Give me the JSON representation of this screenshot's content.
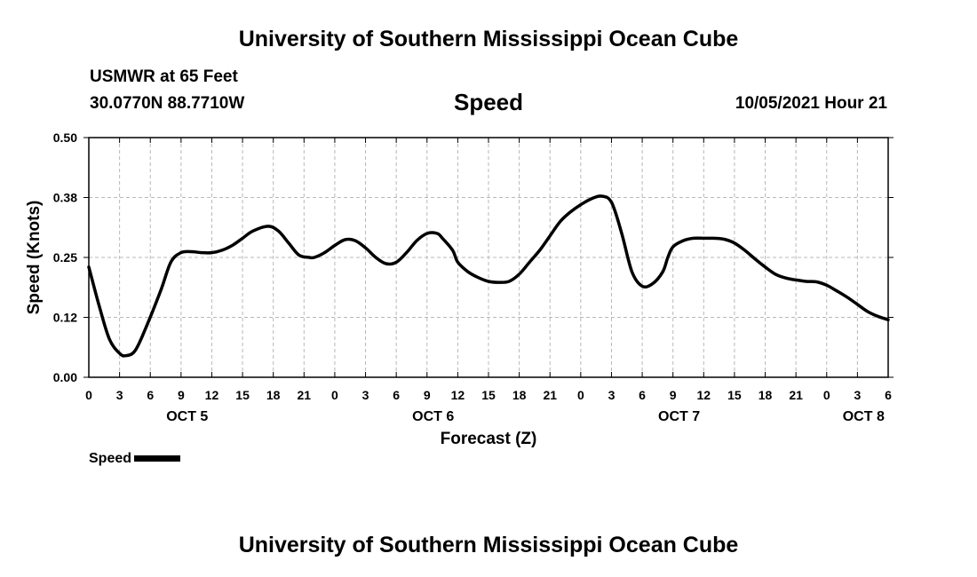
{
  "header": {
    "title": "University of Southern Mississippi Ocean Cube",
    "station": "USMWR at 65 Feet",
    "coords": "30.0770N  88.7710W",
    "timestamp": "10/05/2021 Hour 21"
  },
  "footer": {
    "title": "University of Southern Mississippi Ocean Cube"
  },
  "legend": {
    "label": "Speed"
  },
  "chart_data": {
    "type": "line",
    "title": "Speed",
    "xlabel": "Forecast (Z)",
    "ylabel": "Speed (Knots)",
    "xlim": [
      0,
      78
    ],
    "ylim": [
      0.0,
      0.5
    ],
    "ytick_values": [
      0.0,
      0.125,
      0.25,
      0.375,
      0.5
    ],
    "ytick_labels": [
      "0.00",
      "0.12",
      "0.25",
      "0.38",
      "0.50"
    ],
    "xtick_values": [
      0,
      3,
      6,
      9,
      12,
      15,
      18,
      21,
      24,
      27,
      30,
      33,
      36,
      39,
      42,
      45,
      48,
      51,
      54,
      57,
      60,
      63,
      66,
      69,
      72,
      75,
      78
    ],
    "xtick_labels": [
      "0",
      "3",
      "6",
      "9",
      "12",
      "15",
      "18",
      "21",
      "0",
      "3",
      "6",
      "9",
      "12",
      "15",
      "18",
      "21",
      "0",
      "3",
      "6",
      "9",
      "12",
      "15",
      "18",
      "21",
      "0",
      "3",
      "6"
    ],
    "day_labels": [
      {
        "x": 9.6,
        "label": "OCT 5"
      },
      {
        "x": 33.6,
        "label": "OCT 6"
      },
      {
        "x": 57.6,
        "label": "OCT 7"
      },
      {
        "x": 75.6,
        "label": "OCT 8"
      }
    ],
    "grid": true,
    "series": [
      {
        "name": "Speed",
        "color": "#000000",
        "x": [
          0,
          1,
          2,
          3,
          3.6,
          4.5,
          5.5,
          7,
          8,
          9,
          10,
          11,
          12,
          13,
          14,
          15,
          16,
          17.5,
          18.5,
          19.5,
          20.5,
          21.5,
          22,
          23,
          24,
          25,
          26,
          27,
          28,
          29,
          30,
          31,
          32,
          33,
          34,
          34.5,
          35.5,
          36,
          37,
          38,
          39,
          40,
          41,
          42,
          43,
          44,
          45,
          46,
          47,
          48,
          49,
          50,
          51,
          52,
          53,
          54,
          55,
          56,
          56.5,
          57,
          58,
          59,
          60,
          61,
          62,
          63,
          64,
          65,
          66,
          67,
          68,
          69,
          70,
          71,
          72,
          73,
          74,
          75,
          76,
          77,
          78
        ],
        "y": [
          0.23,
          0.15,
          0.08,
          0.05,
          0.045,
          0.055,
          0.1,
          0.18,
          0.24,
          0.26,
          0.262,
          0.26,
          0.26,
          0.265,
          0.275,
          0.29,
          0.305,
          0.315,
          0.305,
          0.28,
          0.255,
          0.25,
          0.25,
          0.26,
          0.275,
          0.287,
          0.285,
          0.27,
          0.25,
          0.237,
          0.24,
          0.26,
          0.285,
          0.3,
          0.3,
          0.29,
          0.265,
          0.24,
          0.22,
          0.208,
          0.2,
          0.198,
          0.2,
          0.215,
          0.24,
          0.265,
          0.295,
          0.325,
          0.345,
          0.36,
          0.372,
          0.378,
          0.365,
          0.3,
          0.22,
          0.19,
          0.195,
          0.22,
          0.25,
          0.272,
          0.285,
          0.29,
          0.29,
          0.29,
          0.288,
          0.28,
          0.265,
          0.247,
          0.23,
          0.215,
          0.207,
          0.203,
          0.2,
          0.199,
          0.192,
          0.18,
          0.167,
          0.152,
          0.137,
          0.127,
          0.12
        ]
      }
    ]
  }
}
